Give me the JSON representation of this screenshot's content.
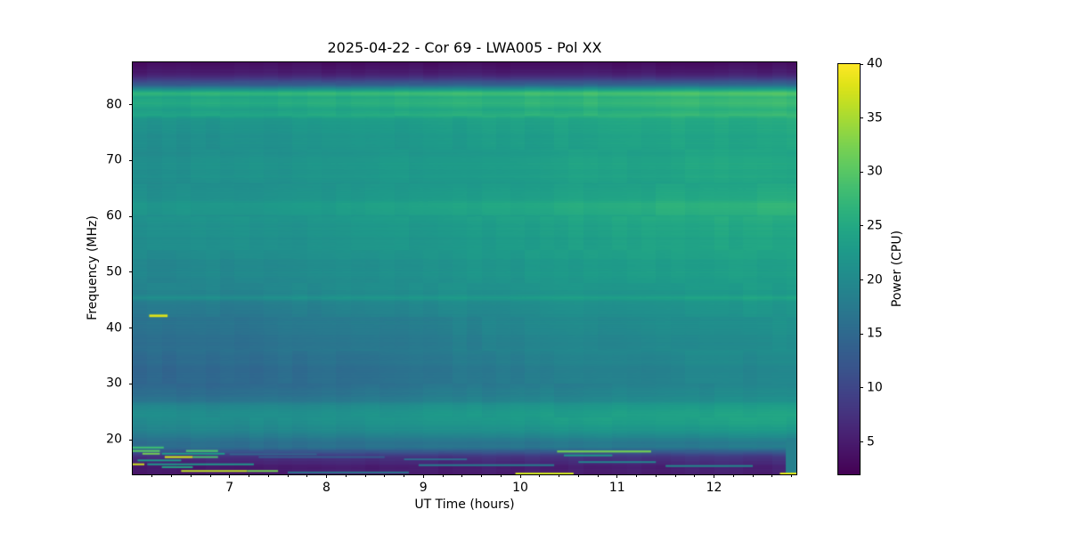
{
  "chart_data": {
    "type": "heatmap",
    "title": "2025-04-22 - Cor 69 - LWA005 - Pol XX",
    "xlabel": "UT Time (hours)",
    "ylabel": "Frequency (MHz)",
    "colorbar_label": "Power (CPU)",
    "colormap": "viridis",
    "x_range": [
      6.0,
      12.85
    ],
    "y_range": [
      13.8,
      87.6
    ],
    "value_range": [
      2,
      40
    ],
    "x_major_ticks": [
      7,
      8,
      9,
      10,
      11,
      12
    ],
    "x_minor_tick_step": 0.2,
    "y_major_ticks": [
      20,
      30,
      40,
      50,
      60,
      70,
      80
    ],
    "colorbar_ticks": [
      5,
      10,
      15,
      20,
      25,
      30,
      35,
      40
    ],
    "grid": false,
    "legend": "colorbar-right",
    "time_ramp": [
      [
        6.0,
        0.0
      ],
      [
        6.8,
        0.08
      ],
      [
        7.6,
        0.18
      ],
      [
        8.4,
        0.32
      ],
      [
        9.2,
        0.48
      ],
      [
        10.0,
        0.62
      ],
      [
        10.8,
        0.76
      ],
      [
        11.6,
        0.88
      ],
      [
        12.4,
        0.96
      ],
      [
        12.85,
        1.0
      ]
    ],
    "freq_profile": [
      [
        13.8,
        4.2,
        5.0
      ],
      [
        14.6,
        4.6,
        5.6
      ],
      [
        15.4,
        5.2,
        6.2
      ],
      [
        16.2,
        6.0,
        7.0
      ],
      [
        17.0,
        7.5,
        8.5
      ],
      [
        17.6,
        10.5,
        11.5
      ],
      [
        18.2,
        14.0,
        15.5
      ],
      [
        18.8,
        16.3,
        18.5
      ],
      [
        19.5,
        16.0,
        18.0
      ],
      [
        20.5,
        17.2,
        20.0
      ],
      [
        21.5,
        18.8,
        22.2
      ],
      [
        22.8,
        20.0,
        24.2
      ],
      [
        24.5,
        20.3,
        24.6
      ],
      [
        25.8,
        19.5,
        23.8
      ],
      [
        27.0,
        16.5,
        21.2
      ],
      [
        28.5,
        15.0,
        20.2
      ],
      [
        30.5,
        14.6,
        19.8
      ],
      [
        33.0,
        14.8,
        20.0
      ],
      [
        36.0,
        15.2,
        20.4
      ],
      [
        38.0,
        15.6,
        20.8
      ],
      [
        40.0,
        16.0,
        21.2
      ],
      [
        42.0,
        16.5,
        21.6
      ],
      [
        43.5,
        17.0,
        22.0
      ],
      [
        44.8,
        17.8,
        22.5
      ],
      [
        45.4,
        20.5,
        24.8
      ],
      [
        46.0,
        18.8,
        23.0
      ],
      [
        48.0,
        19.0,
        23.3
      ],
      [
        50.5,
        19.5,
        23.8
      ],
      [
        53.0,
        20.0,
        24.3
      ],
      [
        56.0,
        20.5,
        24.8
      ],
      [
        58.0,
        20.8,
        25.2
      ],
      [
        60.5,
        21.3,
        26.0
      ],
      [
        61.8,
        22.0,
        27.0
      ],
      [
        63.5,
        21.0,
        25.5
      ],
      [
        66.0,
        20.5,
        24.6
      ],
      [
        69.0,
        20.8,
        25.0
      ],
      [
        72.0,
        20.5,
        24.8
      ],
      [
        75.0,
        20.8,
        25.0
      ],
      [
        77.4,
        21.5,
        25.5
      ],
      [
        78.2,
        24.5,
        28.0
      ],
      [
        79.0,
        23.5,
        26.5
      ],
      [
        80.2,
        25.0,
        28.0
      ],
      [
        81.3,
        24.5,
        27.5
      ],
      [
        82.0,
        27.0,
        30.0
      ],
      [
        82.6,
        22.0,
        25.0
      ],
      [
        83.5,
        13.0,
        15.0
      ],
      [
        85.0,
        6.5,
        7.0
      ],
      [
        86.5,
        3.8,
        3.8
      ],
      [
        87.6,
        3.2,
        3.2
      ]
    ],
    "patches": [
      {
        "t0": 12.74,
        "t1": 12.85,
        "f0": 13.8,
        "f1": 19.8,
        "v": 18.5
      }
    ],
    "streaks": [
      [
        42.2,
        6.17,
        6.36,
        38,
        0.45
      ],
      [
        18.6,
        6.0,
        6.32,
        28,
        0.35
      ],
      [
        18.0,
        6.0,
        6.28,
        30,
        0.35
      ],
      [
        18.0,
        6.55,
        6.88,
        29,
        0.35
      ],
      [
        17.5,
        6.1,
        6.28,
        32,
        0.3
      ],
      [
        17.5,
        6.3,
        6.95,
        23,
        0.3
      ],
      [
        17.4,
        7.0,
        7.9,
        14,
        0.3
      ],
      [
        16.9,
        6.33,
        6.62,
        37,
        0.35
      ],
      [
        16.9,
        6.62,
        6.88,
        29,
        0.3
      ],
      [
        16.3,
        6.05,
        6.5,
        23,
        0.3
      ],
      [
        15.6,
        6.0,
        6.12,
        37,
        0.3
      ],
      [
        15.6,
        6.15,
        7.25,
        22,
        0.25
      ],
      [
        15.1,
        6.3,
        6.62,
        25,
        0.25
      ],
      [
        14.4,
        6.5,
        7.18,
        36,
        0.3
      ],
      [
        14.4,
        7.18,
        7.5,
        32,
        0.28
      ],
      [
        14.15,
        7.6,
        8.85,
        17,
        0.25
      ],
      [
        16.9,
        7.3,
        8.6,
        13,
        0.25
      ],
      [
        16.5,
        8.8,
        9.45,
        15,
        0.25
      ],
      [
        15.45,
        8.95,
        10.35,
        18,
        0.25
      ],
      [
        17.9,
        10.38,
        11.35,
        32,
        0.35
      ],
      [
        17.2,
        10.45,
        10.95,
        22,
        0.3
      ],
      [
        16.0,
        10.6,
        11.4,
        19,
        0.25
      ],
      [
        15.3,
        11.5,
        12.4,
        20,
        0.25
      ],
      [
        13.95,
        9.95,
        10.55,
        37,
        0.3
      ],
      [
        13.95,
        12.68,
        12.85,
        38,
        0.3
      ]
    ],
    "texture": {
      "col_bin_hours": 0.15,
      "col_amp": 0.45,
      "row_amp": 0.25,
      "row_bin_mhz": 0.8,
      "row_bin_amp": 0.3
    }
  }
}
